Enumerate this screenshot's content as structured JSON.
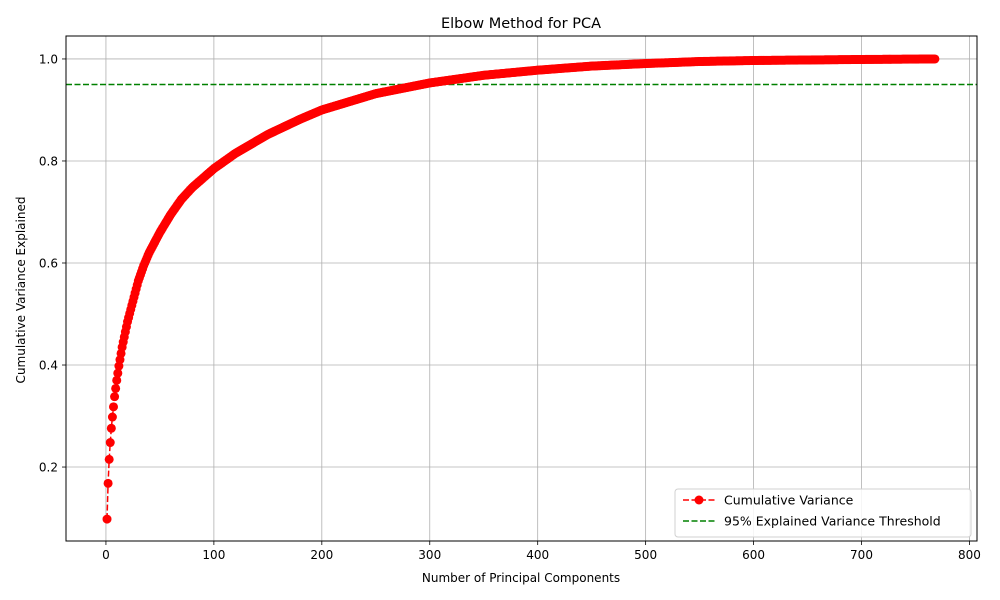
{
  "chart_data": {
    "type": "line",
    "title": "Elbow Method for PCA",
    "xlabel": "Number of Principal Components",
    "ylabel": "Cumulative Variance Explained",
    "xlim": [
      -37,
      807
    ],
    "ylim": [
      0.055,
      1.045
    ],
    "xticks": [
      0,
      100,
      200,
      300,
      400,
      500,
      600,
      700,
      800
    ],
    "yticks": [
      0.2,
      0.4,
      0.6,
      0.8,
      1.0
    ],
    "xtick_labels": [
      "0",
      "100",
      "200",
      "300",
      "400",
      "500",
      "600",
      "700",
      "800"
    ],
    "ytick_labels": [
      "0.2",
      "0.4",
      "0.6",
      "0.8",
      "1.0"
    ],
    "grid": true,
    "legend_position": "lower-right",
    "threshold": {
      "value": 0.95,
      "label": "95% Explained Variance Threshold",
      "color": "#008000",
      "style": "dashed"
    },
    "series": [
      {
        "name": "Cumulative Variance",
        "color": "#ff0000",
        "marker": "circle",
        "line_style": "dashed",
        "n_components": 768,
        "x": [
          1,
          2,
          3,
          4,
          5,
          6,
          7,
          8,
          10,
          12,
          15,
          18,
          20,
          25,
          30,
          35,
          40,
          50,
          60,
          70,
          80,
          100,
          120,
          150,
          180,
          200,
          250,
          300,
          350,
          400,
          450,
          500,
          550,
          600,
          650,
          700,
          768
        ],
        "y": [
          0.098,
          0.168,
          0.215,
          0.248,
          0.276,
          0.298,
          0.318,
          0.338,
          0.37,
          0.398,
          0.435,
          0.465,
          0.485,
          0.525,
          0.565,
          0.595,
          0.62,
          0.66,
          0.695,
          0.725,
          0.748,
          0.785,
          0.815,
          0.852,
          0.882,
          0.9,
          0.932,
          0.953,
          0.968,
          0.978,
          0.986,
          0.991,
          0.995,
          0.997,
          0.998,
          0.999,
          1.0
        ]
      }
    ]
  }
}
